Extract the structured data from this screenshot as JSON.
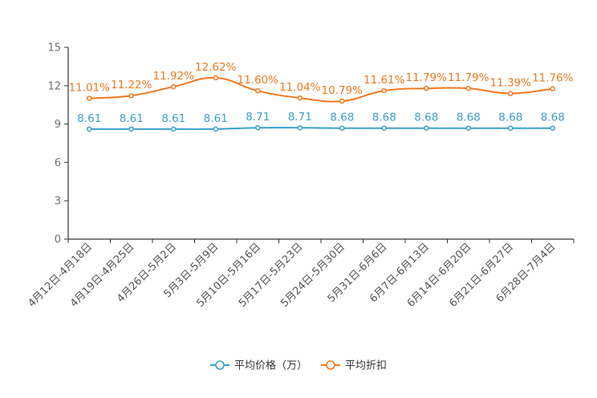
{
  "chart_data": {
    "type": "line",
    "title": "",
    "xlabel": "",
    "ylabel": "",
    "ylim": [
      0,
      15
    ],
    "yticks": [
      0,
      3,
      6,
      9,
      12,
      15
    ],
    "grid": false,
    "legend_position": "bottom-center",
    "categories": [
      "4月12日-4月18日",
      "4月19日-4月25日",
      "4月26日-5月2日",
      "5月3日-5月9日",
      "5月10日-5月16日",
      "5月17日-5月23日",
      "5月24日-5月30日",
      "5月31日-6月6日",
      "6月7日-6月13日",
      "6月14日-6月20日",
      "6月21日-6月27日",
      "6月28日-7月4日"
    ],
    "series": [
      {
        "name": "平均价格（万）",
        "color": "#3ba0d0",
        "values": [
          8.61,
          8.61,
          8.61,
          8.61,
          8.71,
          8.71,
          8.68,
          8.68,
          8.68,
          8.68,
          8.68,
          8.68
        ],
        "labels": [
          "8.61",
          "8.61",
          "8.61",
          "8.61",
          "8.71",
          "8.71",
          "8.68",
          "8.68",
          "8.68",
          "8.68",
          "8.68",
          "8.68"
        ]
      },
      {
        "name": "平均折扣",
        "color": "#f07820",
        "values": [
          11.01,
          11.22,
          11.92,
          12.62,
          11.6,
          11.04,
          10.79,
          11.61,
          11.79,
          11.79,
          11.39,
          11.76
        ],
        "labels": [
          "11.01%",
          "11.22%",
          "11.92%",
          "12.62%",
          "11.60%",
          "11.04%",
          "10.79%",
          "11.61%",
          "11.79%",
          "11.79%",
          "11.39%",
          "11.76%"
        ]
      }
    ]
  }
}
